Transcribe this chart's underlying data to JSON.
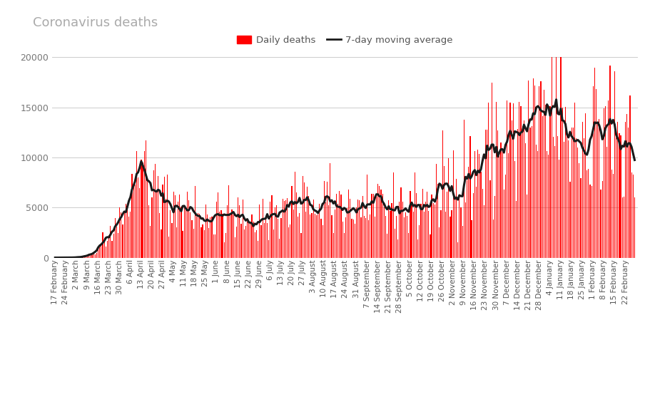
{
  "title": "Coronavirus deaths",
  "legend_daily": "Daily deaths",
  "legend_avg": "7-day moving average",
  "bar_color": "#ff0000",
  "avg_color": "#1a1a1a",
  "background_color": "#ffffff",
  "title_color": "#aaaaaa",
  "ylim": [
    0,
    20000
  ],
  "yticks": [
    0,
    5000,
    10000,
    15000,
    20000
  ],
  "x_labels": [
    "17 February",
    "24 February",
    "2 March",
    "9 March",
    "16 March",
    "23 March",
    "30 March",
    "6 April",
    "13 April",
    "20 April",
    "27 April",
    "4 May",
    "11 May",
    "18 May",
    "25 May",
    "1 June",
    "8 June",
    "15 June",
    "22 June",
    "29 June",
    "6 July",
    "13 July",
    "20 July",
    "27 July",
    "3 August",
    "10 August",
    "17 August",
    "24 August",
    "31 August",
    "7 September",
    "14 September",
    "21 September",
    "28 September",
    "5 October",
    "12 October",
    "19 October",
    "26 October",
    "2 November",
    "9 November",
    "16 November",
    "23 November",
    "30 November",
    "7 December",
    "14 December",
    "21 December",
    "28 December",
    "4 January",
    "11 January",
    "18 January",
    "25 January",
    "1 February",
    "8 February",
    "15 February",
    "22 February"
  ],
  "seed": 42,
  "n_weeks": 54,
  "week_values": [
    0,
    10,
    30,
    200,
    900,
    2800,
    4500,
    7200,
    10800,
    7500,
    5800,
    6200,
    5500,
    5000,
    4600,
    4400,
    4500,
    4400,
    4200,
    4100,
    4600,
    5100,
    5800,
    5900,
    5400,
    5500,
    5700,
    5600,
    5600,
    5700,
    5600,
    5300,
    5500,
    5500,
    5600,
    6000,
    7200,
    7800,
    8500,
    9200,
    10800,
    11800,
    12500,
    13000,
    13500,
    14800,
    16500,
    15200,
    14200,
    13500,
    13800,
    14000,
    13800,
    10500
  ]
}
